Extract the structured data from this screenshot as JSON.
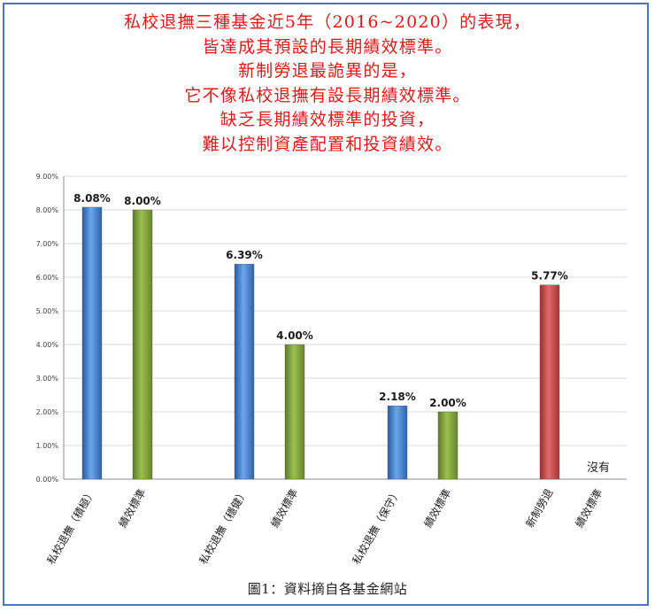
{
  "headline": [
    "私校退撫三種基金近5年（2016~2020）的表現，",
    "皆達成其預設的長期績效標準。",
    "新制勞退最詭異的是，",
    "它不像私校退撫有設長期績效標準。",
    "缺乏長期績效標準的投資，",
    "難以控制資產配置和投資績效。"
  ],
  "caption": "圖1：資料摘自各基金網站",
  "missing_note": "沒有",
  "colors": {
    "headline": "#e01818",
    "blue": "#4a86d4",
    "green": "#7fa03c",
    "red": "#cc4a4a",
    "grid": "#d9d9d9",
    "frame": "#4a78b8"
  },
  "chart_data": {
    "type": "bar",
    "categories": [
      "私校退撫（積極）",
      "績效標準",
      "私校退撫（穩健）",
      "績效標準",
      "私校退撫（保守）",
      "績效標準",
      "新制勞退",
      "績效標準"
    ],
    "values": [
      8.08,
      8.0,
      6.39,
      4.0,
      2.18,
      2.0,
      5.77,
      null
    ],
    "value_labels": [
      "8.08%",
      "8.00%",
      "6.39%",
      "4.00%",
      "2.18%",
      "2.00%",
      "5.77%",
      ""
    ],
    "bar_colors": [
      "blue",
      "green",
      "blue",
      "green",
      "blue",
      "green",
      "red",
      "green"
    ],
    "ylim": [
      0,
      9
    ],
    "yticks": [
      "0.00%",
      "1.00%",
      "2.00%",
      "3.00%",
      "4.00%",
      "5.00%",
      "6.00%",
      "7.00%",
      "8.00%",
      "9.00%"
    ],
    "grid": true,
    "title": "",
    "xlabel": "",
    "ylabel": ""
  }
}
